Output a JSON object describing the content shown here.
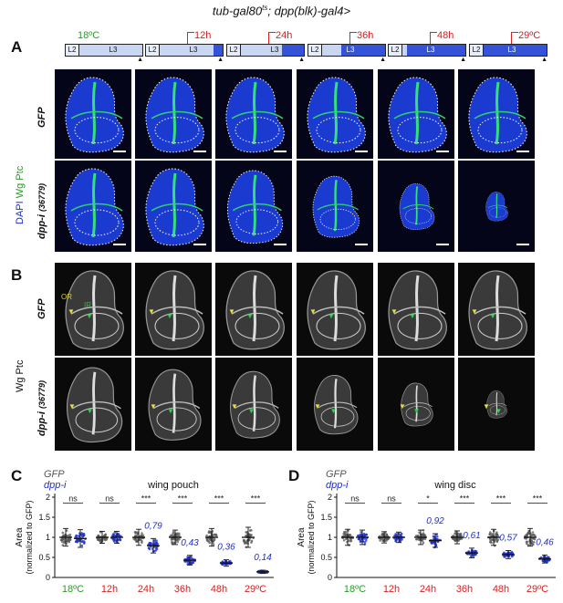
{
  "title": {
    "main": "tub-gal80",
    "sup": "ts",
    "rest": "; dpp(blk)-gal4>"
  },
  "panels": {
    "a": "A",
    "b": "B",
    "c": "C",
    "d": "D"
  },
  "timelines": [
    {
      "caption": "18ºC",
      "l2": "L2",
      "l3": "L3"
    },
    {
      "caption": "12h",
      "l2": "L2",
      "l3": "L3"
    },
    {
      "caption": "24h",
      "l2": "L2",
      "l3": "L3"
    },
    {
      "caption": "36h",
      "l2": "L2",
      "l3": "L3"
    },
    {
      "caption": "48h",
      "l2": "L2",
      "l3": "L3"
    },
    {
      "caption": "29ºC",
      "l2": "L2",
      "l3": "L3"
    }
  ],
  "panelA": {
    "row1": "GFP",
    "row2": "dpp-i",
    "row2_suffix": "(36779)",
    "stain_dapi": "DAPI",
    "stain_wg": "Wg Ptc"
  },
  "panelB": {
    "row1": "GFP",
    "row2": "dpp-i",
    "row2_suffix": "(36779)",
    "stain": "Wg Ptc",
    "or": "OR",
    "ir": "IR"
  },
  "colors": {
    "gfp": "#555555",
    "dpp": "#1e2fc8",
    "green_label": "#2a9a2a",
    "red_label": "#d22222",
    "stat": "#222222"
  },
  "chart_data": [
    {
      "type": "scatter",
      "title": "wing pouch",
      "ylabel": "Area",
      "ylabel2": "(normalized to GFP)",
      "legend": [
        "GFP",
        "dpp-i"
      ],
      "categories": [
        "18ºC",
        "12h",
        "24h",
        "36h",
        "48h",
        "29ºC"
      ],
      "ylim": [
        0,
        2
      ],
      "yticks": [
        "0",
        "0.5",
        "1",
        "1.5",
        "2"
      ],
      "significance": [
        "ns",
        "ns",
        "***",
        "***",
        "***",
        "***"
      ],
      "annotations": [
        "",
        "",
        "0,79",
        "0,43",
        "0,36",
        "0,14"
      ],
      "series": [
        {
          "name": "GFP",
          "means": [
            1.0,
            1.0,
            1.0,
            1.0,
            1.0,
            1.0
          ],
          "sd": [
            0.22,
            0.15,
            0.2,
            0.18,
            0.22,
            0.25
          ]
        },
        {
          "name": "dpp-i",
          "means": [
            0.97,
            1.0,
            0.79,
            0.43,
            0.36,
            0.14
          ],
          "sd": [
            0.22,
            0.15,
            0.18,
            0.12,
            0.08,
            0.04
          ]
        }
      ]
    },
    {
      "type": "scatter",
      "title": "wing disc",
      "ylabel": "Area",
      "ylabel2": "(normalized to GFP)",
      "legend": [
        "GFP",
        "dpp-i"
      ],
      "categories": [
        "18ºC",
        "12h",
        "24h",
        "36h",
        "48h",
        "29ºC"
      ],
      "ylim": [
        0,
        2
      ],
      "yticks": [
        "0",
        "0.5",
        "1",
        "1.5",
        "2"
      ],
      "significance": [
        "ns",
        "ns",
        "*",
        "***",
        "***",
        "***"
      ],
      "annotations": [
        "",
        "",
        "0,92",
        "0,61",
        "0,57",
        "0,46"
      ],
      "series": [
        {
          "name": "GFP",
          "means": [
            1.0,
            1.0,
            1.0,
            1.0,
            1.0,
            1.0
          ],
          "sd": [
            0.2,
            0.14,
            0.18,
            0.16,
            0.2,
            0.22
          ]
        },
        {
          "name": "dpp-i",
          "means": [
            1.0,
            1.0,
            0.92,
            0.61,
            0.57,
            0.46
          ],
          "sd": [
            0.18,
            0.13,
            0.17,
            0.12,
            0.1,
            0.1
          ]
        }
      ]
    }
  ]
}
